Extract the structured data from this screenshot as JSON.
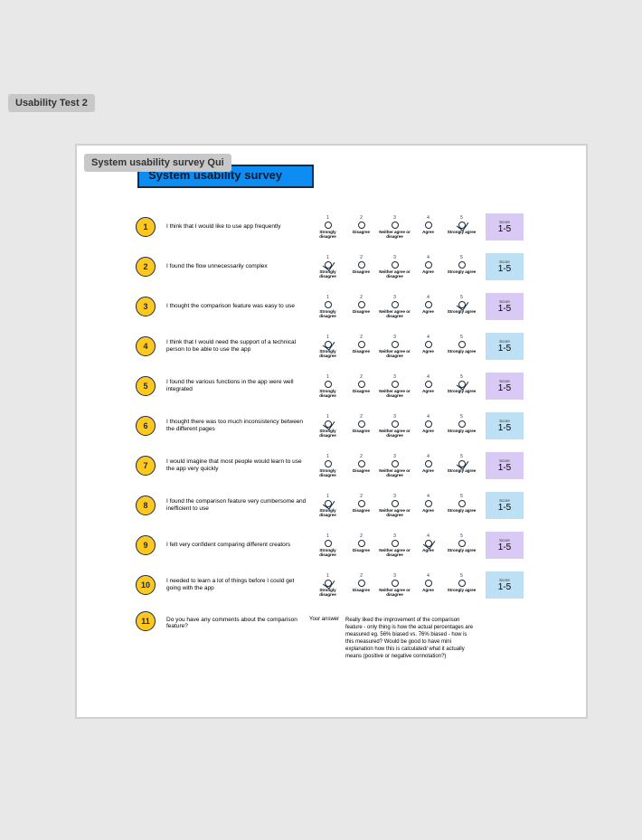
{
  "outer_tag": "Usability Test 2",
  "inner_tag": "System usability survey Qui",
  "title": "System usability survey",
  "colors": {
    "page_bg": "#e8e8e8",
    "tag_bg": "#c8c8c8",
    "canvas_bg": "#ffffff",
    "title_bg": "#0d8cf2",
    "title_border": "#1a2a3a",
    "qnum_bg": "#ffc820",
    "score_odd": "#d9c9f5",
    "score_even": "#bde0f5",
    "dotted": "#2a6db8"
  },
  "scale_labels": [
    "Strongly disagree",
    "Disagree",
    "Neither agree or disagree",
    "Agree",
    "Strongly agree"
  ],
  "score_label": "Score",
  "score_value": "1-5",
  "questions": [
    {
      "n": "1",
      "text": "I think that I would like to use app frequently",
      "selected": 5
    },
    {
      "n": "2",
      "text": "I found the flow unnecessarily complex",
      "selected": 1
    },
    {
      "n": "3",
      "text": "I thought the comparison feature was easy to use",
      "selected": 5
    },
    {
      "n": "4",
      "text": "I think that I would need the support of a technical person to be able to use the app",
      "selected": 1
    },
    {
      "n": "5",
      "text": "I found the various functions in the app were well integrated",
      "selected": 5
    },
    {
      "n": "6",
      "text": "I thought there was too much inconsistency between the different pages",
      "selected": 1
    },
    {
      "n": "7",
      "text": "I would imagine that most people would learn to use the app very quickly",
      "selected": 5
    },
    {
      "n": "8",
      "text": "I found the comparison feature very cumbersome and inefficient to use",
      "selected": 1
    },
    {
      "n": "9",
      "text": "I felt very confident comparing different creators",
      "selected": 4
    },
    {
      "n": "10",
      "text": "I needed to learn a lot of things before I could get going with the app",
      "selected": 1
    }
  ],
  "comment": {
    "n": "11",
    "q": "Do you have any comments about the comparison feature?",
    "your_answer_label": "Your answer",
    "answer": "Really liked the improvement of the comparison feature - only thing is how the actual percentages are measured eg. 56% biased vs. 76% biased - how is this measured? Would be good to have mini explanation how this is calculated/ what it actually means (positive or negative connotation?)"
  }
}
